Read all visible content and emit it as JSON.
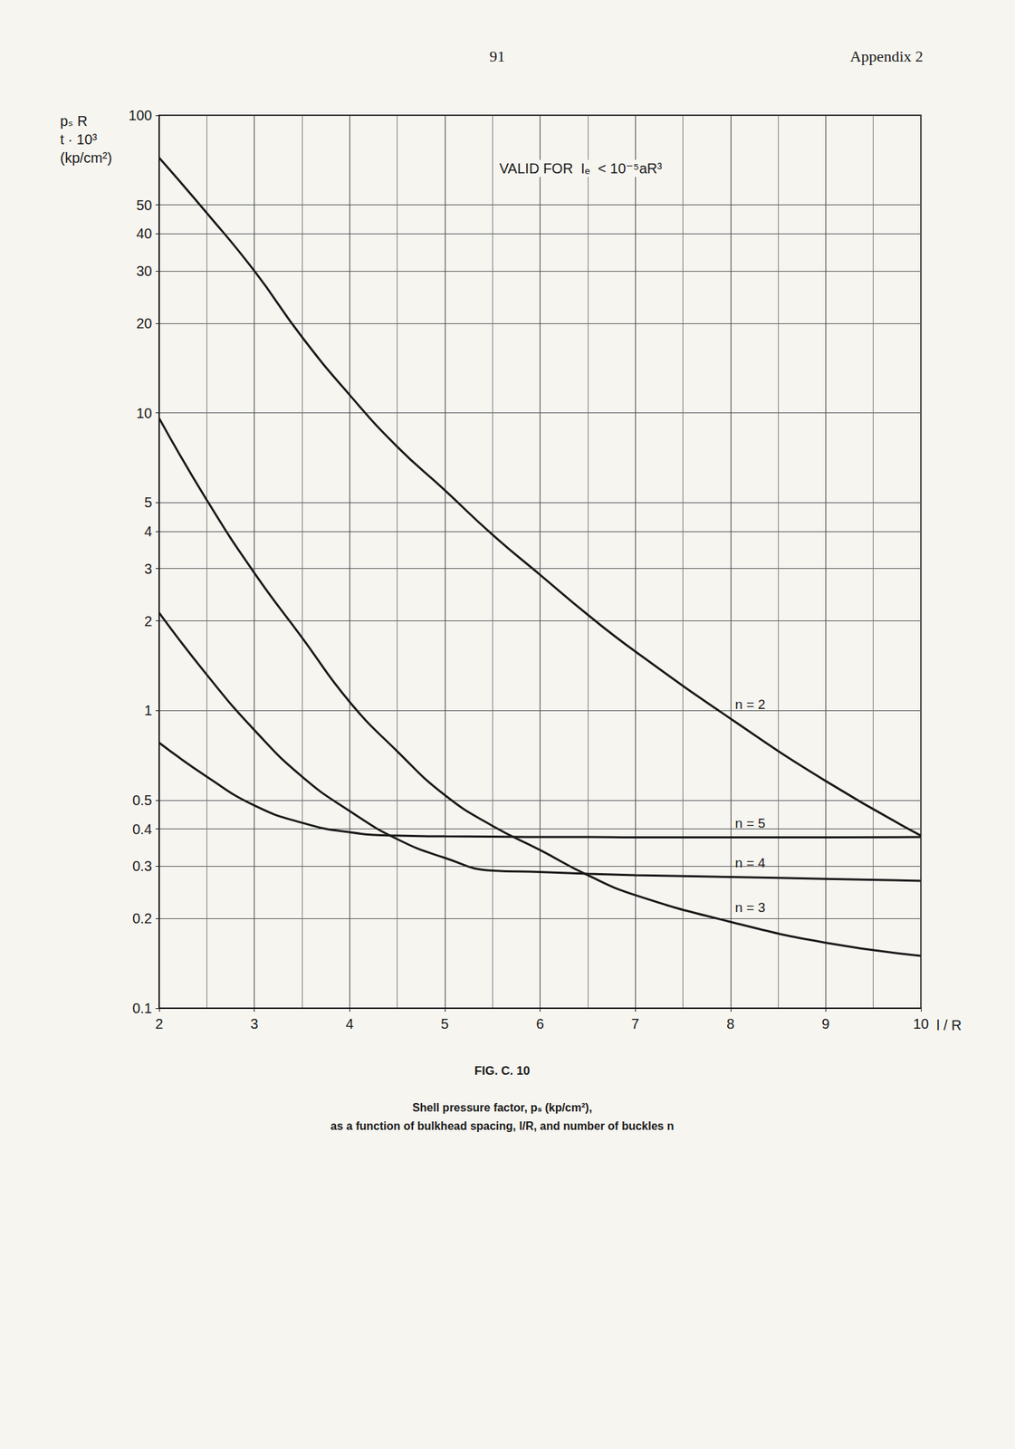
{
  "page": {
    "number": "91",
    "section": "Appendix 2"
  },
  "chart_data": {
    "type": "line",
    "title": "FIG. C. 10",
    "subtitle": "Shell pressure factor, pₛ (kp/cm²),\nas a function of bulkhead spacing, l/R, and number of buckles n",
    "x_label": "l / R",
    "y_label": "pₛ R\nt · 10³\n(kp/cm²)",
    "annotations": [
      "VALID FOR  Iₑ  < 10⁻⁵aR³"
    ],
    "x": [
      2,
      2.5,
      3,
      3.5,
      4,
      4.5,
      5,
      5.5,
      6,
      6.5,
      7,
      8,
      9,
      10
    ],
    "series": [
      {
        "name": "n = 2",
        "color": "#1a1a1a",
        "values": [
          72,
          47,
          30,
          18,
          11.5,
          7.7,
          5.5,
          3.9,
          2.86,
          2.1,
          1.58,
          0.94,
          0.58,
          0.38
        ]
      },
      {
        "name": "n = 5",
        "color": "#1a1a1a",
        "values": [
          0.78,
          0.6,
          0.48,
          0.42,
          0.39,
          0.38,
          0.378,
          0.377,
          0.376,
          0.376,
          0.375,
          0.375,
          0.375,
          0.376
        ]
      },
      {
        "name": "n = 4",
        "color": "#1a1a1a",
        "values": [
          2.13,
          1.32,
          0.86,
          0.6,
          0.46,
          0.37,
          0.32,
          0.29,
          0.287,
          0.283,
          0.28,
          0.276,
          0.272,
          0.268
        ]
      },
      {
        "name": "n = 3",
        "color": "#1a1a1a",
        "values": [
          9.6,
          5.1,
          2.9,
          1.76,
          1.07,
          0.73,
          0.52,
          0.41,
          0.34,
          0.28,
          0.24,
          0.195,
          0.166,
          0.15
        ]
      }
    ],
    "xlim": [
      2,
      10
    ],
    "xticks": [
      2,
      3,
      4,
      5,
      6,
      7,
      8,
      9,
      10
    ],
    "ylim": [
      0.1,
      100
    ],
    "yticks": [
      0.1,
      0.2,
      0.3,
      0.4,
      0.5,
      1,
      2,
      3,
      4,
      5,
      10,
      20,
      30,
      40,
      50,
      100
    ],
    "log": "y",
    "grid": true,
    "line_style": "solid"
  }
}
